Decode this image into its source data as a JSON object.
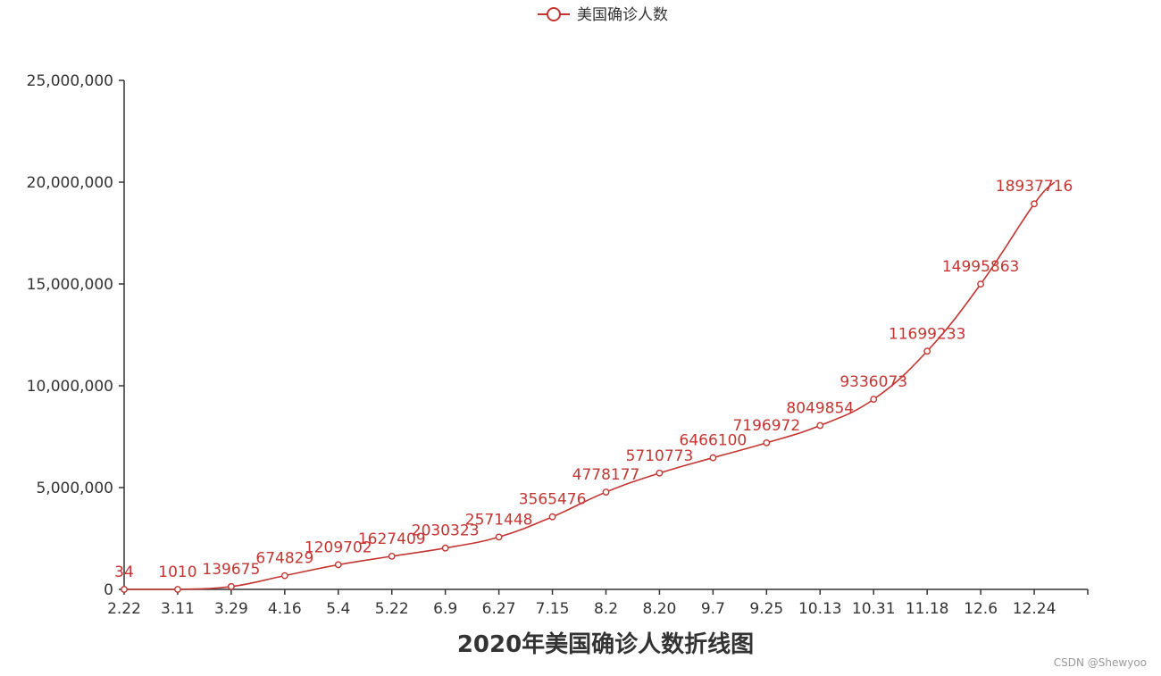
{
  "chart_data": {
    "type": "line",
    "title": "2020年美国确诊人数折线图",
    "legend": {
      "position": "top-center",
      "marker": "circle-line"
    },
    "categories": [
      "2.22",
      "3.11",
      "3.29",
      "4.16",
      "5.4",
      "5.22",
      "6.9",
      "6.27",
      "7.15",
      "8.2",
      "8.20",
      "9.7",
      "9.25",
      "10.13",
      "10.31",
      "11.18",
      "12.6",
      "12.24"
    ],
    "series": [
      {
        "name": "美国确诊人数",
        "color": "#c23531",
        "smooth": true,
        "values": [
          34,
          1010,
          139675,
          674829,
          1209702,
          1627409,
          2030323,
          2571448,
          3565476,
          4778177,
          5710773,
          6466100,
          7196972,
          8049854,
          9336073,
          11699233,
          14995863,
          18937716
        ],
        "labels": [
          "34",
          "1010",
          "139675",
          "674829",
          "1209702",
          "1627409",
          "2030323",
          "2571448",
          "3565476",
          "4778177",
          "5710773",
          "6466100",
          "7196972",
          "8049854",
          "9336073",
          "11699233",
          "14995863",
          "18937716"
        ],
        "end_value": 20000000
      }
    ],
    "ylim": [
      0,
      25000000
    ],
    "y_ticks": [
      0,
      5000000,
      10000000,
      15000000,
      20000000,
      25000000
    ],
    "y_tick_labels": [
      "0",
      "5,000,000",
      "10,000,000",
      "15,000,000",
      "20,000,000",
      "25,000,000"
    ],
    "xlabel": "",
    "ylabel": "",
    "grid": false
  },
  "watermark": "CSDN @Shewyoo"
}
